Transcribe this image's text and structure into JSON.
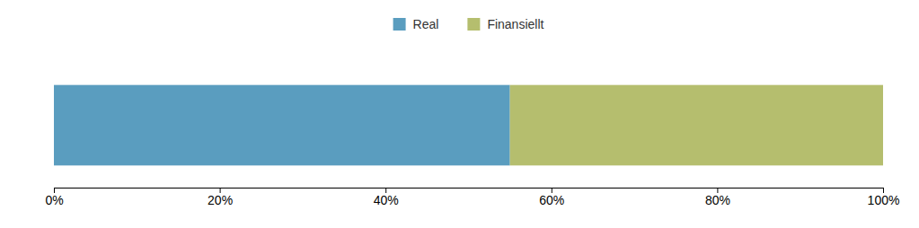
{
  "chart_data": {
    "type": "bar",
    "orientation": "horizontal",
    "stacked": true,
    "categories": [
      null
    ],
    "series": [
      {
        "name": "Real",
        "color": "#5a9dbf",
        "values": [
          55
        ]
      },
      {
        "name": "Finansiellt",
        "color": "#b5be6e",
        "values": [
          45
        ]
      }
    ],
    "xlim": [
      0,
      100
    ],
    "xticks": [
      {
        "value": 0,
        "label": "0%"
      },
      {
        "value": 20,
        "label": "20%"
      },
      {
        "value": 40,
        "label": "40%"
      },
      {
        "value": 60,
        "label": "60%"
      },
      {
        "value": 80,
        "label": "80%"
      },
      {
        "value": 100,
        "label": "100%"
      }
    ],
    "legend": "top",
    "tick_labels": "x"
  }
}
